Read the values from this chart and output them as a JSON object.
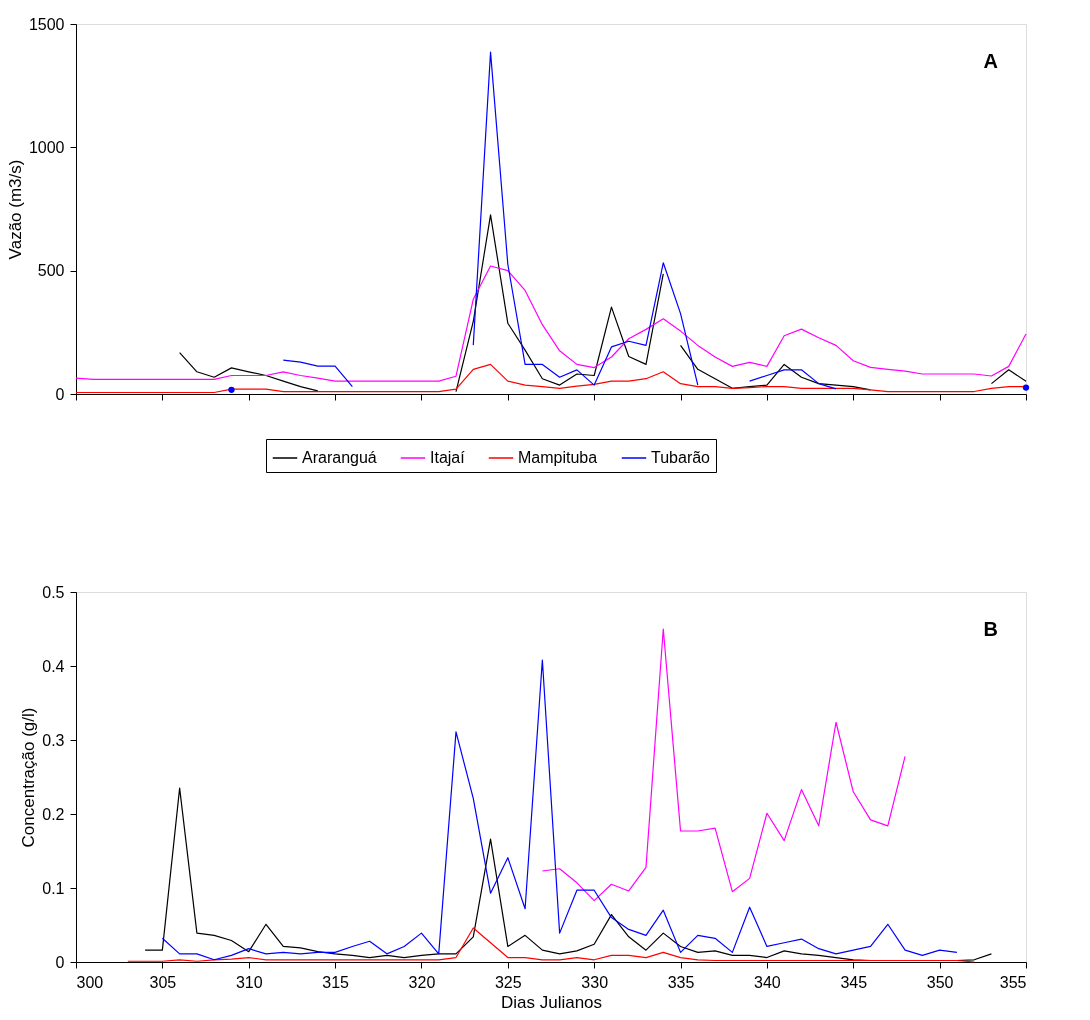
{
  "chart_data": [
    {
      "type": "line",
      "ylabel": "Vazão (m3/s)",
      "xlim": [
        300,
        355
      ],
      "xticks": [
        300,
        305,
        310,
        315,
        320,
        325,
        330,
        335,
        340,
        345,
        350,
        355
      ],
      "ylim": [
        0,
        1500
      ],
      "yticks": [
        0,
        500,
        1000,
        1500
      ],
      "tick_labels": "y",
      "grid": false,
      "legend": "bottom",
      "marker": "none",
      "annotations": [
        "A"
      ],
      "series": [
        {
          "name": "Araranguá",
          "color": "#000000",
          "x": [
            306,
            307,
            308,
            309,
            310,
            311,
            312,
            313,
            314,
            314.5,
            322,
            323,
            324,
            325,
            326,
            327,
            328,
            329,
            330,
            331,
            332,
            333,
            334,
            334.5,
            335,
            336,
            337,
            338,
            339,
            340,
            341,
            342,
            343,
            344,
            345,
            346,
            349,
            353,
            354,
            355
          ],
          "values": [
            168,
            90,
            68,
            106,
            90,
            75,
            52,
            30,
            13,
            null,
            10,
            294,
            726,
            287,
            178,
            62,
            36,
            81,
            75,
            352,
            152,
            120,
            487,
            null,
            197,
            100,
            62,
            23,
            30,
            36,
            120,
            68,
            42,
            36,
            30,
            17,
            null,
            42,
            98,
            52
          ]
        },
        {
          "name": "Itajaí",
          "color": "#ff00ff",
          "x": [
            300,
            301,
            302,
            303,
            304,
            305,
            306,
            307,
            308,
            309,
            310,
            311,
            312,
            313,
            314,
            315,
            316,
            317,
            318,
            319,
            320,
            321,
            322,
            323,
            324,
            325,
            326,
            327,
            328,
            329,
            330,
            331,
            332,
            333,
            334,
            335,
            336,
            337,
            338,
            339,
            340,
            341,
            342,
            343,
            344,
            345,
            346,
            347,
            348,
            349,
            350,
            351,
            352,
            353,
            354,
            355
          ],
          "values": [
            64,
            59,
            59,
            59,
            59,
            59,
            59,
            59,
            59,
            75,
            75,
            75,
            90,
            75,
            64,
            52,
            52,
            52,
            52,
            52,
            52,
            52,
            72,
            384,
            519,
            500,
            420,
            281,
            175,
            120,
            107,
            150,
            224,
            262,
            305,
            255,
            197,
            150,
            112,
            128,
            112,
            236,
            263,
            228,
            197,
            135,
            108,
            100,
            93,
            81,
            81,
            81,
            81,
            73,
            112,
            243
          ]
        },
        {
          "name": "Mampituba",
          "color": "#ff0000",
          "x": [
            300,
            301,
            302,
            303,
            304,
            305,
            306,
            307,
            308,
            309,
            310,
            311,
            312,
            313,
            314,
            315,
            316,
            317,
            318,
            319,
            320,
            321,
            322,
            323,
            324,
            325,
            326,
            327,
            328,
            329,
            330,
            331,
            332,
            333,
            334,
            335,
            336,
            337,
            338,
            339,
            340,
            341,
            342,
            343,
            344,
            345,
            346,
            347,
            348,
            349,
            350,
            351,
            352,
            353,
            354,
            355
          ],
          "values": [
            6,
            6,
            6,
            6,
            6,
            6,
            6,
            6,
            6,
            20,
            20,
            20,
            10,
            10,
            10,
            10,
            10,
            10,
            10,
            10,
            10,
            10,
            20,
            100,
            120,
            52,
            36,
            30,
            23,
            32,
            39,
            52,
            52,
            62,
            90,
            42,
            30,
            30,
            23,
            26,
            30,
            30,
            23,
            23,
            23,
            23,
            17,
            10,
            10,
            10,
            10,
            10,
            10,
            23,
            30,
            30
          ]
        },
        {
          "name": "Tubarão",
          "color": "#0000ff",
          "x": [
            312,
            313,
            314,
            315,
            316,
            320,
            323,
            324,
            325,
            326,
            327,
            328,
            329,
            330,
            331,
            332,
            333,
            334,
            335,
            336,
            337,
            339,
            340,
            341,
            342,
            343,
            344
          ],
          "values": [
            137,
            129,
            113,
            113,
            30,
            null,
            198,
            1386,
            526,
            120,
            120,
            68,
            98,
            36,
            191,
            214,
            197,
            532,
            326,
            36,
            null,
            52,
            75,
            98,
            98,
            42,
            21
          ]
        },
        {
          "type": "scatter",
          "color": "#0000ff",
          "marker": "circle",
          "x": [
            309,
            355
          ],
          "values": [
            17,
            26
          ]
        }
      ]
    },
    {
      "type": "line",
      "xlabel": "Dias Julianos",
      "ylabel": "Concentração (g/l)",
      "xlim": [
        300,
        355
      ],
      "xticks": [
        300,
        305,
        310,
        315,
        320,
        325,
        330,
        335,
        340,
        345,
        350,
        355
      ],
      "ylim": [
        0,
        0.5
      ],
      "yticks": [
        0,
        0.1,
        0.2,
        0.3,
        0.4,
        0.5
      ],
      "grid": false,
      "legend": false,
      "marker": "none",
      "annotations": [
        "B"
      ],
      "series": [
        {
          "color": "#000000",
          "x": [
            304,
            305,
            306,
            307,
            308,
            309,
            310,
            311,
            312,
            313,
            314,
            315,
            316,
            317,
            318,
            319,
            320,
            321,
            322,
            323,
            324,
            325,
            326,
            327,
            328,
            329,
            330,
            331,
            332,
            333,
            334,
            335,
            336,
            337,
            338,
            339,
            340,
            341,
            342,
            343,
            344,
            345,
            346,
            347,
            348,
            349,
            350,
            351,
            352,
            353
          ],
          "values": [
            0.016,
            0.016,
            0.235,
            0.039,
            0.036,
            0.029,
            0.014,
            0.051,
            0.021,
            0.019,
            0.014,
            0.011,
            0.009,
            0.006,
            0.009,
            0.006,
            0.009,
            0.011,
            0.011,
            0.034,
            0.166,
            0.021,
            0.036,
            0.016,
            0.011,
            0.015,
            0.024,
            0.064,
            0.034,
            0.016,
            0.039,
            0.021,
            0.013,
            0.015,
            0.009,
            0.009,
            0.006,
            0.015,
            0.011,
            0.009,
            0.006,
            0.003,
            0.002,
            0.002,
            0.002,
            0.002,
            0.002,
            0.002,
            0.003,
            0.011
          ]
        },
        {
          "color": "#ff00ff",
          "x": [
            327,
            328,
            329,
            330,
            331,
            332,
            333,
            334,
            335,
            336,
            337,
            338,
            339,
            340,
            341,
            342,
            343,
            344,
            345,
            346,
            347,
            348
          ],
          "values": [
            0.123,
            0.126,
            0.107,
            0.083,
            0.105,
            0.096,
            0.128,
            0.45,
            0.177,
            0.177,
            0.181,
            0.095,
            0.113,
            0.201,
            0.164,
            0.233,
            0.184,
            0.324,
            0.23,
            0.192,
            0.184,
            0.278
          ]
        },
        {
          "color": "#ff0000",
          "x": [
            303,
            304,
            305,
            306,
            307,
            308,
            309,
            310,
            311,
            312,
            313,
            314,
            315,
            316,
            317,
            318,
            319,
            320,
            321,
            322,
            323,
            324,
            325,
            326,
            327,
            328,
            329,
            330,
            331,
            332,
            333,
            334,
            335,
            336,
            337,
            338,
            339,
            340,
            341,
            342,
            343,
            344,
            345,
            346,
            347,
            348,
            349,
            350,
            351,
            352
          ],
          "values": [
            0.001,
            0.001,
            0.001,
            0.003,
            0.001,
            0.003,
            0.004,
            0.006,
            0.003,
            0.003,
            0.003,
            0.003,
            0.003,
            0.003,
            0.003,
            0.003,
            0.003,
            0.003,
            0.003,
            0.006,
            0.046,
            0.026,
            0.006,
            0.006,
            0.003,
            0.003,
            0.006,
            0.003,
            0.009,
            0.009,
            0.006,
            0.013,
            0.006,
            0.003,
            0.002,
            0.002,
            0.002,
            0.002,
            0.002,
            0.002,
            0.002,
            0.002,
            0.002,
            0.002,
            0.002,
            0.002,
            0.002,
            0.002,
            0.002,
            0
          ]
        },
        {
          "color": "#0000ff",
          "x": [
            305,
            306,
            307,
            308,
            309,
            310,
            311,
            312,
            313,
            314,
            315,
            316,
            317,
            318,
            319,
            320,
            321,
            322,
            323,
            324,
            325,
            326,
            327,
            328,
            329,
            330,
            331,
            332,
            333,
            334,
            335,
            336,
            337,
            338,
            339,
            340,
            341,
            342,
            343,
            344,
            345,
            346,
            347,
            348,
            349,
            350,
            351
          ],
          "values": [
            0.032,
            0.011,
            0.011,
            0.003,
            0.009,
            0.018,
            0.011,
            0.013,
            0.011,
            0.013,
            0.013,
            0.021,
            0.028,
            0.011,
            0.021,
            0.039,
            0.011,
            0.311,
            0.221,
            0.093,
            0.141,
            0.072,
            0.408,
            0.039,
            0.097,
            0.097,
            0.06,
            0.044,
            0.036,
            0.07,
            0.013,
            0.036,
            0.032,
            0.013,
            0.074,
            0.021,
            0.026,
            0.031,
            0.018,
            0.011,
            0.016,
            0.021,
            0.051,
            0.016,
            0.009,
            0.016,
            0.013
          ]
        }
      ]
    }
  ]
}
